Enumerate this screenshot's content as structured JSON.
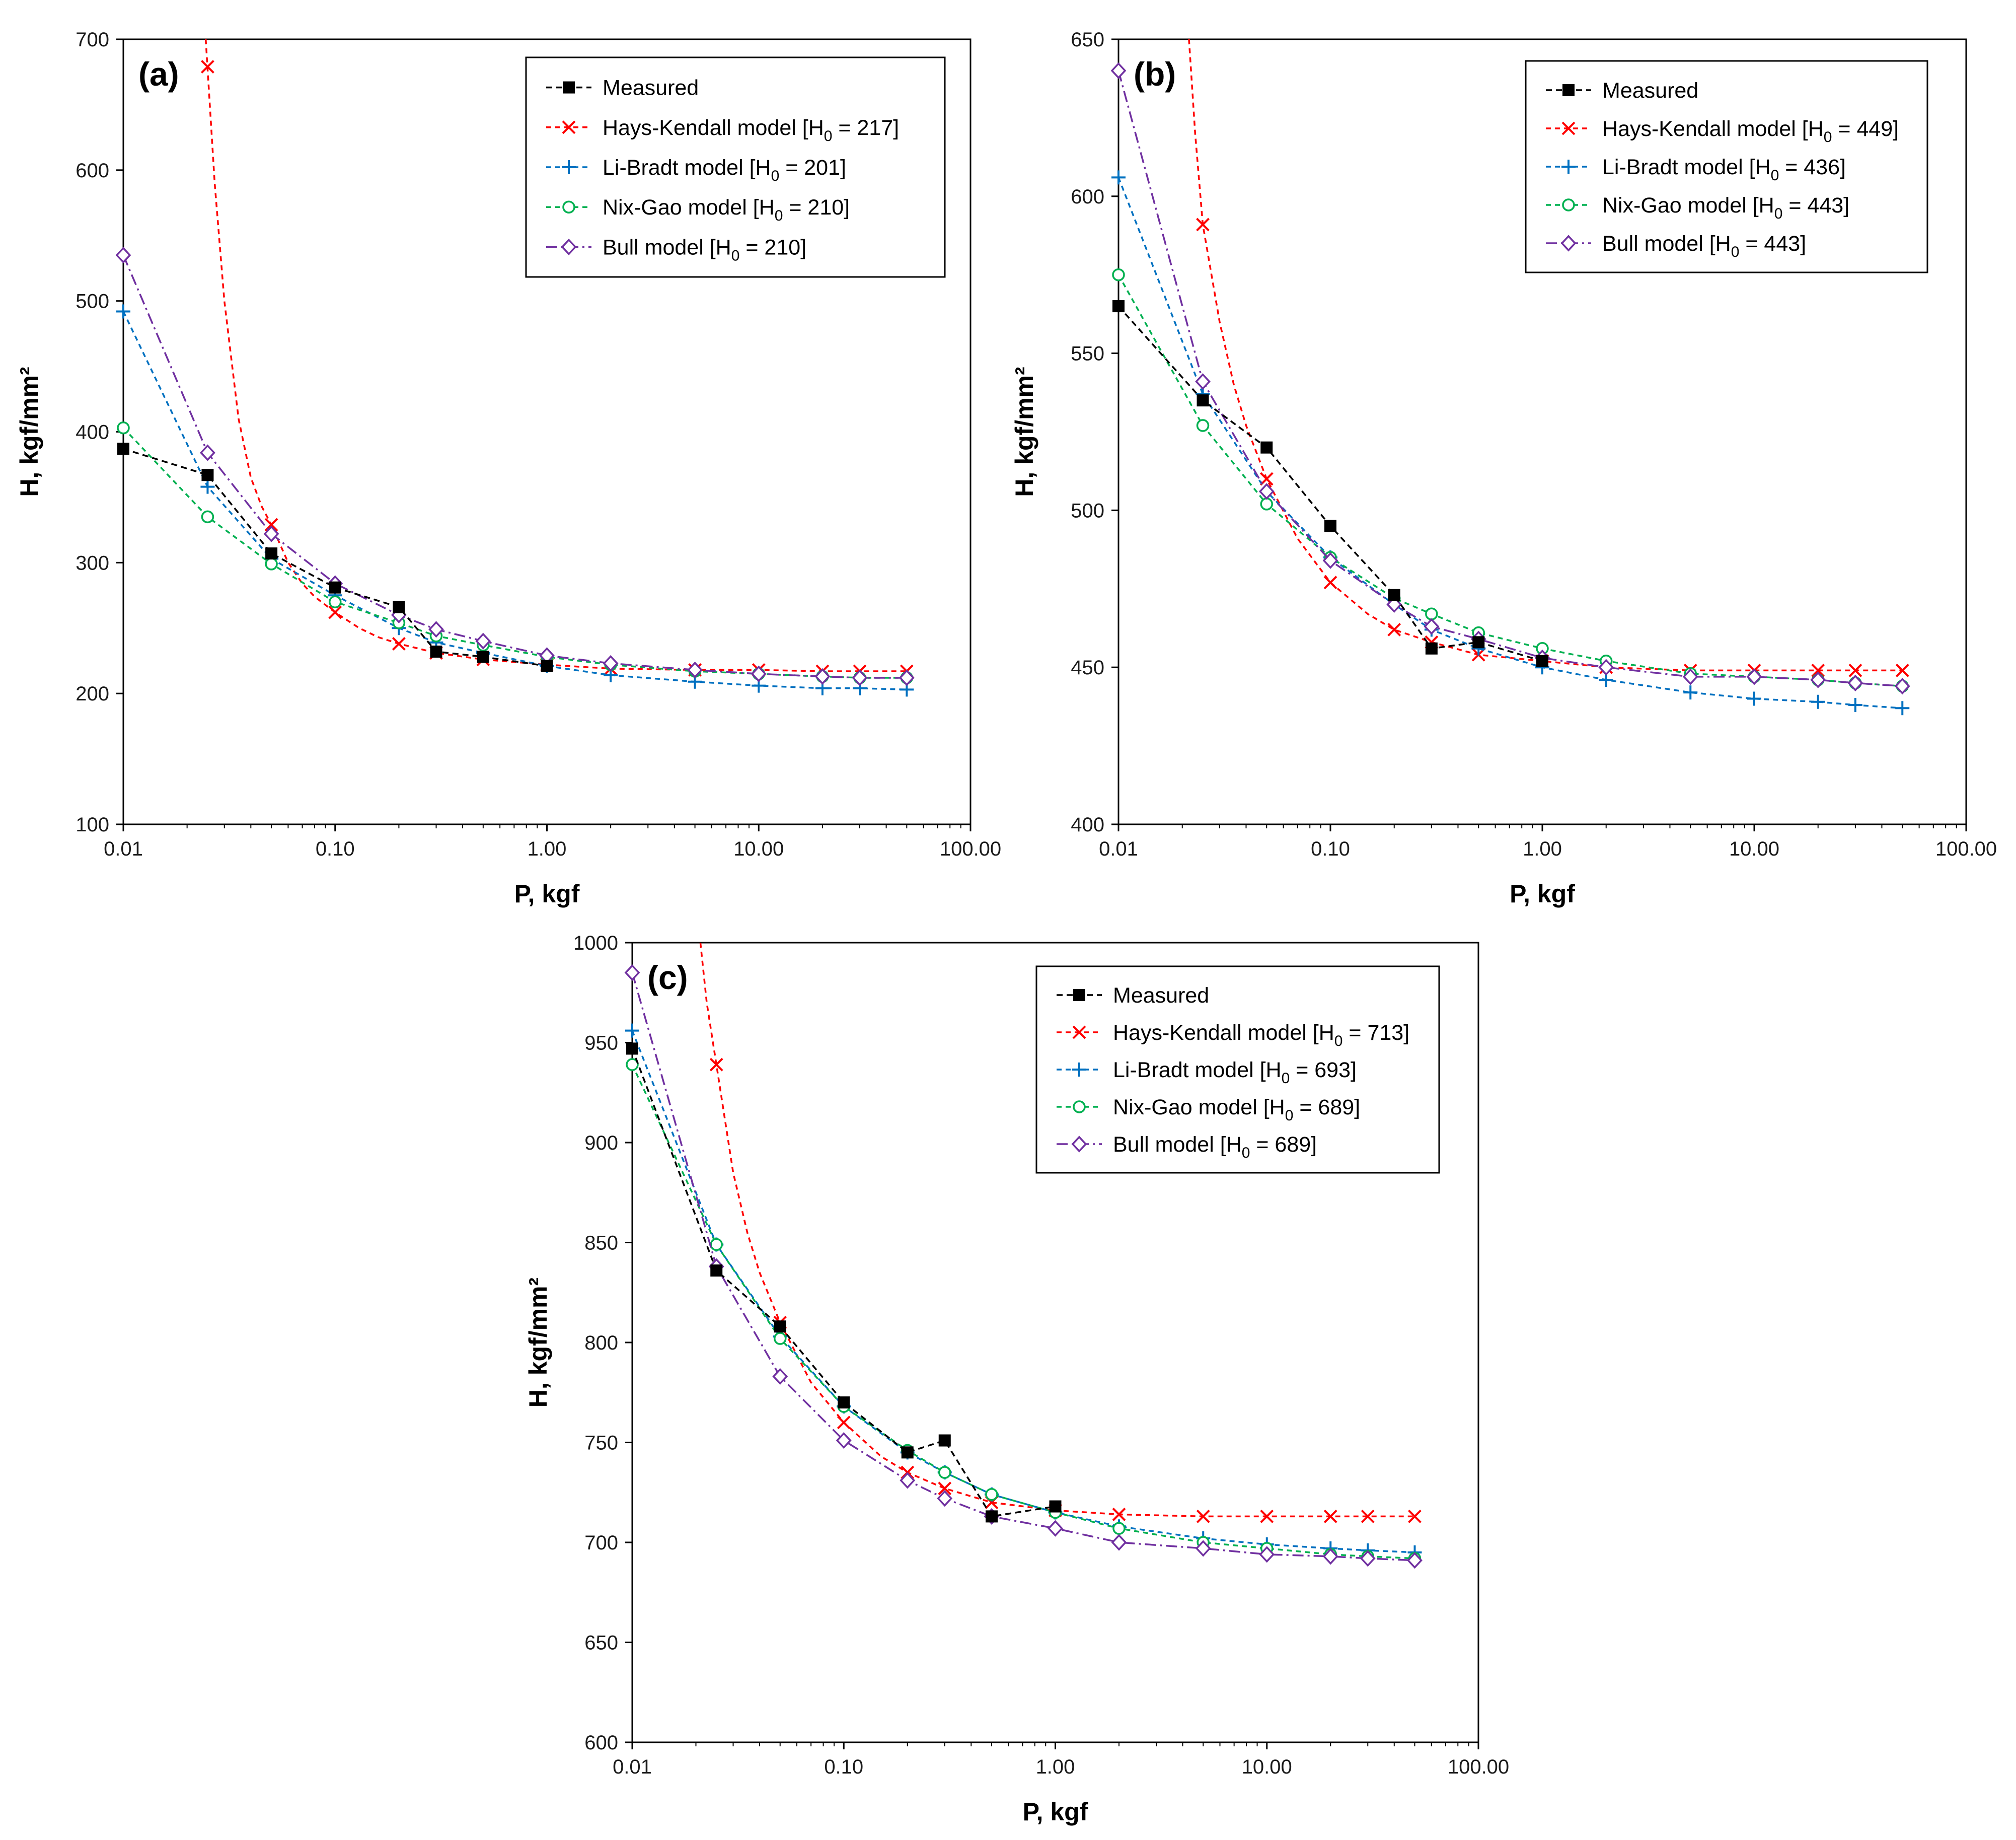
{
  "colors": {
    "measured": "#000000",
    "hays": "#ff0000",
    "li": "#0070c0",
    "nix": "#00b050",
    "bull": "#7030a0"
  },
  "icons": {
    "measured": "filled-square",
    "hays": "x-cross",
    "li": "plus",
    "nix": "open-circle",
    "bull": "open-diamond"
  },
  "chart_data": [
    {
      "type": "line",
      "panel_label": "(a)",
      "xlabel": "P, kgf",
      "ylabel": "H, kgf/mm²",
      "xscale": "log",
      "xlim": [
        0.01,
        100
      ],
      "ylim": [
        100,
        700
      ],
      "xticks": [
        0.01,
        0.1,
        1,
        10,
        100
      ],
      "xtick_labels": [
        "0.01",
        "0.10",
        "1.00",
        "10.00",
        "100.00"
      ],
      "yticks": [
        100,
        200,
        300,
        400,
        500,
        600,
        700
      ],
      "ytick_labels": [
        "100",
        "200",
        "300",
        "400",
        "500",
        "600",
        "700"
      ],
      "legend_position": "top-right",
      "series": [
        {
          "key": "measured",
          "name": "Measured",
          "subscript": "",
          "tail": "",
          "x": [
            0.01,
            0.025,
            0.05,
            0.1,
            0.2,
            0.3,
            0.5,
            1
          ],
          "y": [
            387,
            367,
            307,
            281,
            266,
            232,
            228,
            221
          ]
        },
        {
          "key": "hays",
          "name": "Hays-Kendall model [H",
          "subscript": "0",
          "tail": " = 217]",
          "x": [
            0.025,
            0.05,
            0.1,
            0.2,
            0.3,
            0.5,
            1,
            2,
            5,
            10,
            20,
            30,
            50
          ],
          "y": [
            679,
            329,
            262,
            238,
            231,
            226,
            222,
            219,
            218,
            218,
            217,
            217,
            217
          ],
          "curve_x": [
            0.0245,
            0.027,
            0.03,
            0.035,
            0.04,
            0.045,
            0.05,
            0.06,
            0.07,
            0.08,
            0.1,
            0.13,
            0.16,
            0.2,
            0.3,
            0.5,
            1,
            2,
            5,
            10,
            20,
            30,
            50
          ],
          "curve_y": [
            700,
            590,
            500,
            410,
            365,
            343,
            329,
            300,
            284,
            274,
            262,
            250,
            243,
            238,
            231,
            226,
            222,
            219,
            218,
            218,
            217,
            217,
            217
          ]
        },
        {
          "key": "li",
          "name": "Li-Bradt model [H",
          "subscript": "0",
          "tail": " = 201]",
          "x": [
            0.01,
            0.025,
            0.05,
            0.1,
            0.2,
            0.3,
            0.5,
            1,
            2,
            5,
            10,
            20,
            30,
            50
          ],
          "y": [
            492,
            358,
            303,
            275,
            250,
            239,
            231,
            221,
            214,
            209,
            206,
            204,
            204,
            203
          ]
        },
        {
          "key": "nix",
          "name": "Nix-Gao model [H",
          "subscript": "0",
          "tail": " = 210]",
          "x": [
            0.01,
            0.025,
            0.05,
            0.1,
            0.2,
            0.3,
            0.5,
            1,
            2,
            5,
            10,
            20,
            30,
            50
          ],
          "y": [
            403,
            335,
            299,
            270,
            254,
            244,
            237,
            228,
            222,
            217,
            215,
            213,
            212,
            212
          ]
        },
        {
          "key": "bull",
          "name": "Bull model [H",
          "subscript": "0",
          "tail": " = 210]",
          "x": [
            0.01,
            0.025,
            0.05,
            0.1,
            0.2,
            0.3,
            0.5,
            1,
            2,
            5,
            10,
            20,
            30,
            50
          ],
          "y": [
            535,
            384,
            322,
            284,
            260,
            249,
            240,
            229,
            223,
            218,
            215,
            213,
            212,
            212
          ]
        }
      ]
    },
    {
      "type": "line",
      "panel_label": "(b)",
      "xlabel": "P, kgf",
      "ylabel": "H, kgf/mm²",
      "xscale": "log",
      "xlim": [
        0.01,
        100
      ],
      "ylim": [
        400,
        650
      ],
      "xticks": [
        0.01,
        0.1,
        1,
        10,
        100
      ],
      "xtick_labels": [
        "0.01",
        "0.10",
        "1.00",
        "10.00",
        "100.00"
      ],
      "yticks": [
        400,
        450,
        500,
        550,
        600,
        650
      ],
      "ytick_labels": [
        "400",
        "450",
        "500",
        "550",
        "600",
        "650"
      ],
      "legend_position": "top-right",
      "series": [
        {
          "key": "measured",
          "name": "Measured",
          "subscript": "",
          "tail": "",
          "x": [
            0.01,
            0.025,
            0.05,
            0.1,
            0.2,
            0.3,
            0.5,
            1
          ],
          "y": [
            565,
            535,
            520,
            495,
            473,
            456,
            458,
            452
          ]
        },
        {
          "key": "hays",
          "name": "Hays-Kendall model [H",
          "subscript": "0",
          "tail": " = 449]",
          "x": [
            0.025,
            0.05,
            0.1,
            0.2,
            0.3,
            0.5,
            1,
            2,
            5,
            10,
            20,
            30,
            50
          ],
          "y": [
            591,
            510,
            477,
            462,
            458,
            454,
            452,
            450,
            449,
            449,
            449,
            449,
            449
          ],
          "curve_x": [
            0.0215,
            0.023,
            0.025,
            0.03,
            0.035,
            0.04,
            0.05,
            0.07,
            0.1,
            0.15,
            0.2,
            0.3,
            0.5,
            1,
            2,
            5,
            10,
            20,
            30,
            50
          ],
          "curve_y": [
            650,
            620,
            591,
            560,
            540,
            527,
            510,
            491,
            477,
            467,
            462,
            458,
            454,
            452,
            450,
            449,
            449,
            449,
            449,
            449
          ]
        },
        {
          "key": "li",
          "name": "Li-Bradt model [H",
          "subscript": "0",
          "tail": " = 436]",
          "x": [
            0.01,
            0.025,
            0.05,
            0.1,
            0.2,
            0.3,
            0.5,
            1,
            2,
            5,
            10,
            20,
            30,
            50
          ],
          "y": [
            606,
            537,
            506,
            485,
            470,
            462,
            456,
            450,
            446,
            442,
            440,
            439,
            438,
            437
          ]
        },
        {
          "key": "nix",
          "name": "Nix-Gao model [H",
          "subscript": "0",
          "tail": " = 443]",
          "x": [
            0.01,
            0.025,
            0.05,
            0.1,
            0.2,
            0.3,
            0.5,
            1,
            2,
            5,
            10,
            20,
            30,
            50
          ],
          "y": [
            575,
            527,
            502,
            485,
            472,
            467,
            461,
            456,
            452,
            448,
            447,
            446,
            445,
            444
          ]
        },
        {
          "key": "bull",
          "name": "Bull model [H",
          "subscript": "0",
          "tail": " = 443]",
          "x": [
            0.01,
            0.025,
            0.05,
            0.1,
            0.2,
            0.3,
            0.5,
            1,
            2,
            5,
            10,
            20,
            30,
            50
          ],
          "y": [
            640,
            541,
            506,
            484,
            470,
            463,
            459,
            453,
            450,
            447,
            447,
            446,
            445,
            444
          ]
        }
      ]
    },
    {
      "type": "line",
      "panel_label": "(c)",
      "xlabel": "P, kgf",
      "ylabel": "H, kgf/mm²",
      "xscale": "log",
      "xlim": [
        0.01,
        100
      ],
      "ylim": [
        600,
        1000
      ],
      "xticks": [
        0.01,
        0.1,
        1,
        10,
        100
      ],
      "xtick_labels": [
        "0.01",
        "0.10",
        "1.00",
        "10.00",
        "100.00"
      ],
      "yticks": [
        600,
        650,
        700,
        750,
        800,
        850,
        900,
        950,
        1000
      ],
      "ytick_labels": [
        "600",
        "650",
        "700",
        "750",
        "800",
        "850",
        "900",
        "950",
        "1000"
      ],
      "legend_position": "top-right",
      "series": [
        {
          "key": "measured",
          "name": "Measured",
          "subscript": "",
          "tail": "",
          "x": [
            0.01,
            0.025,
            0.05,
            0.1,
            0.2,
            0.3,
            0.5,
            1
          ],
          "y": [
            947,
            836,
            808,
            770,
            745,
            751,
            713,
            718
          ]
        },
        {
          "key": "hays",
          "name": "Hays-Kendall model [H",
          "subscript": "0",
          "tail": " = 713]",
          "x": [
            0.025,
            0.05,
            0.1,
            0.2,
            0.3,
            0.5,
            1,
            2,
            5,
            10,
            20,
            30,
            50
          ],
          "y": [
            939,
            810,
            760,
            735,
            727,
            720,
            716,
            714,
            713,
            713,
            713,
            713,
            713
          ],
          "curve_x": [
            0.021,
            0.0225,
            0.025,
            0.03,
            0.035,
            0.04,
            0.05,
            0.07,
            0.1,
            0.15,
            0.2,
            0.3,
            0.5,
            1,
            2,
            5,
            10,
            20,
            30,
            50
          ],
          "curve_y": [
            1000,
            970,
            939,
            885,
            855,
            835,
            810,
            780,
            760,
            743,
            735,
            727,
            720,
            716,
            714,
            713,
            713,
            713,
            713,
            713
          ]
        },
        {
          "key": "li",
          "name": "Li-Bradt model [H",
          "subscript": "0",
          "tail": " = 693]",
          "x": [
            0.01,
            0.025,
            0.05,
            0.1,
            0.2,
            0.3,
            0.5,
            1,
            2,
            5,
            10,
            20,
            30,
            50
          ],
          "y": [
            956,
            849,
            803,
            768,
            745,
            735,
            724,
            715,
            708,
            702,
            699,
            697,
            696,
            695
          ]
        },
        {
          "key": "nix",
          "name": "Nix-Gao model [H",
          "subscript": "0",
          "tail": " = 689]",
          "x": [
            0.01,
            0.025,
            0.05,
            0.1,
            0.2,
            0.3,
            0.5,
            1,
            2,
            5,
            10,
            20,
            30,
            50
          ],
          "y": [
            939,
            849,
            802,
            768,
            746,
            735,
            724,
            715,
            707,
            700,
            697,
            694,
            693,
            692
          ]
        },
        {
          "key": "bull",
          "name": "Bull model [H",
          "subscript": "0",
          "tail": " = 689]",
          "x": [
            0.01,
            0.025,
            0.05,
            0.1,
            0.2,
            0.3,
            0.5,
            1,
            2,
            5,
            10,
            20,
            30,
            50
          ],
          "y": [
            985,
            838,
            783,
            751,
            731,
            722,
            713,
            707,
            700,
            697,
            694,
            693,
            692,
            691
          ]
        }
      ]
    }
  ]
}
